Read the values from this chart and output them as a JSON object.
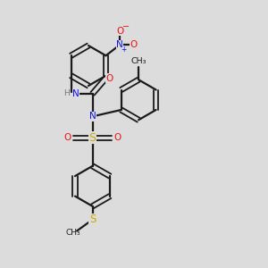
{
  "background_color": "#dcdcdc",
  "bond_color": "#1a1a1a",
  "N_color": "#1010ee",
  "O_color": "#ee1010",
  "S_color": "#ccaa00",
  "H_color": "#777777",
  "figsize": [
    3.0,
    3.0
  ],
  "dpi": 100,
  "xlim": [
    0,
    10
  ],
  "ylim": [
    0,
    10
  ]
}
